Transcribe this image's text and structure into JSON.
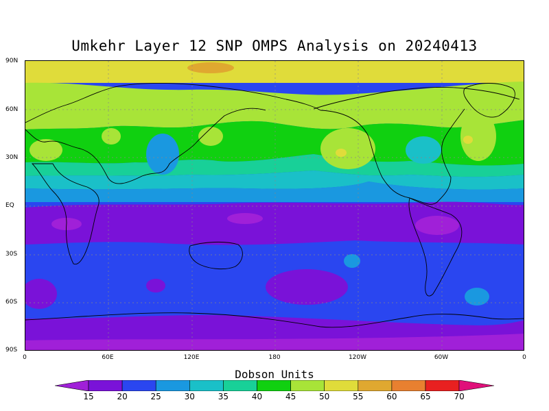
{
  "title": "Umkehr Layer 12 SNP OMPS Analysis on 20240413",
  "y_labels": [
    "90N",
    "60N",
    "30N",
    "EQ",
    "30S",
    "60S",
    "90S"
  ],
  "x_labels": [
    "0",
    "60E",
    "120E",
    "180",
    "120W",
    "60W",
    "0"
  ],
  "colorbar": {
    "title": "Dobson Units",
    "labels": [
      "15",
      "20",
      "25",
      "30",
      "35",
      "40",
      "45",
      "50",
      "55",
      "60",
      "65",
      "70"
    ],
    "colors": [
      "#a020d8",
      "#7a12d8",
      "#2a46f0",
      "#1a98e0",
      "#1ac0c8",
      "#18d098",
      "#10d010",
      "#a8e438",
      "#e0dc3a",
      "#e0a830",
      "#e88030",
      "#e82020",
      "#e0107a"
    ]
  },
  "colors": {
    "du15": "#a020d8",
    "du20": "#7a12d8",
    "du25": "#2a46f0",
    "du30": "#1a98e0",
    "du35": "#1ac0c8",
    "du40": "#18d098",
    "du45": "#10d010",
    "du50": "#a8e438",
    "du55": "#e0dc3a",
    "du60": "#e0a830"
  }
}
